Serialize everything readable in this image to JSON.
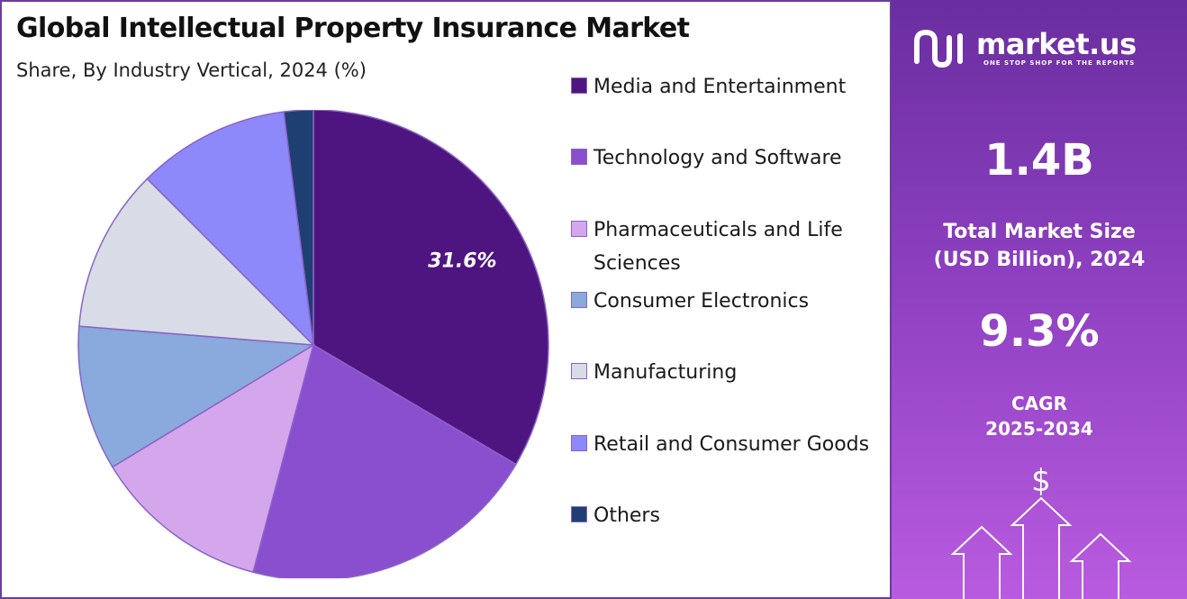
{
  "title": "Global Intellectual Property Insurance Market",
  "subtitle": "Share, By Industry Vertical, 2024 (%)",
  "chart_data": {
    "type": "pie",
    "categories": [
      "Media and Entertainment",
      "Technology and Software",
      "Pharmaceuticals and Life Sciences",
      "Consumer Electronics",
      "Manufacturing",
      "Retail and Consumer Goods",
      "Others"
    ],
    "values": [
      31.6,
      19.5,
      11.5,
      9.4,
      10.6,
      9.9,
      1.9
    ],
    "colors": [
      "#4e1580",
      "#8a4fcf",
      "#d4a6ec",
      "#8aa9dc",
      "#d8dce6",
      "#8e89fa",
      "#1f3f73"
    ],
    "data_labels": [
      {
        "category": "Media and Entertainment",
        "text": "31.6%"
      }
    ],
    "legend_position": "right"
  },
  "legend": {
    "items": [
      {
        "label": "Media and Entertainment"
      },
      {
        "label": "Technology and Software"
      },
      {
        "label": "Pharmaceuticals and Life Sciences"
      },
      {
        "label": "Consumer Electronics"
      },
      {
        "label": "Manufacturing"
      },
      {
        "label": "Retail and Consumer Goods"
      },
      {
        "label": "Others"
      }
    ]
  },
  "sidebar": {
    "brand": "market.us",
    "tagline": "ONE STOP SHOP FOR THE REPORTS",
    "market_size_value": "1.4B",
    "market_size_label_line1": "Total Market Size",
    "market_size_label_line2": "(USD Billion), 2024",
    "cagr_value": "9.3%",
    "cagr_label_line1": "CAGR",
    "cagr_label_line2": "2025-2034",
    "currency_symbol": "$",
    "logo_icon": "market-us-logo-icon",
    "growth_icon": "growth-arrows-icon"
  }
}
